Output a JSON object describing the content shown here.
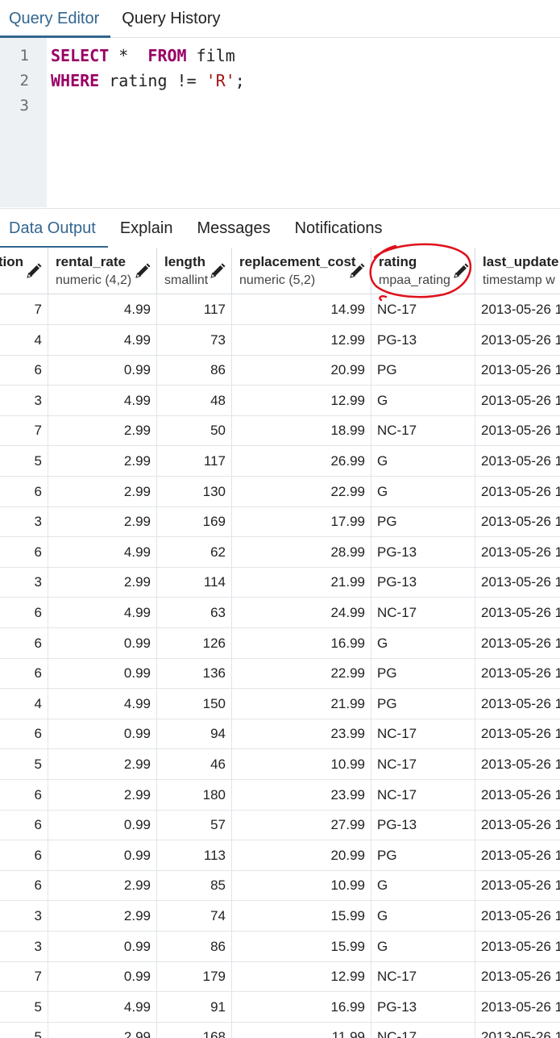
{
  "top_tabs": [
    {
      "label": "Query Editor",
      "active": true
    },
    {
      "label": "Query History",
      "active": false
    }
  ],
  "editor": {
    "line_numbers": [
      "1",
      "2",
      "3"
    ],
    "line1": {
      "kw1": "SELECT",
      "rest1": " *  ",
      "kw2": "FROM",
      "rest2": " film"
    },
    "line2": {
      "kw1": "WHERE",
      "rest1": " rating != ",
      "str": "'R'",
      "rest2": ";"
    }
  },
  "bottom_tabs": [
    {
      "label": "Data Output",
      "active": true
    },
    {
      "label": "Explain",
      "active": false
    },
    {
      "label": "Messages",
      "active": false
    },
    {
      "label": "Notifications",
      "active": false
    }
  ],
  "columns": [
    {
      "name": "ation",
      "type": ""
    },
    {
      "name": "rental_rate",
      "type": "numeric (4,2)"
    },
    {
      "name": "length",
      "type": "smallint"
    },
    {
      "name": "replacement_cost",
      "type": "numeric (5,2)"
    },
    {
      "name": "rating",
      "type": "mpaa_rating"
    },
    {
      "name": "last_update",
      "type": "timestamp w"
    }
  ],
  "rows": [
    [
      "7",
      "4.99",
      "117",
      "14.99",
      "NC-17",
      "2013-05-26 1"
    ],
    [
      "4",
      "4.99",
      "73",
      "12.99",
      "PG-13",
      "2013-05-26 1"
    ],
    [
      "6",
      "0.99",
      "86",
      "20.99",
      "PG",
      "2013-05-26 1"
    ],
    [
      "3",
      "4.99",
      "48",
      "12.99",
      "G",
      "2013-05-26 1"
    ],
    [
      "7",
      "2.99",
      "50",
      "18.99",
      "NC-17",
      "2013-05-26 1"
    ],
    [
      "5",
      "2.99",
      "117",
      "26.99",
      "G",
      "2013-05-26 1"
    ],
    [
      "6",
      "2.99",
      "130",
      "22.99",
      "G",
      "2013-05-26 1"
    ],
    [
      "3",
      "2.99",
      "169",
      "17.99",
      "PG",
      "2013-05-26 1"
    ],
    [
      "6",
      "4.99",
      "62",
      "28.99",
      "PG-13",
      "2013-05-26 1"
    ],
    [
      "3",
      "2.99",
      "114",
      "21.99",
      "PG-13",
      "2013-05-26 1"
    ],
    [
      "6",
      "4.99",
      "63",
      "24.99",
      "NC-17",
      "2013-05-26 1"
    ],
    [
      "6",
      "0.99",
      "126",
      "16.99",
      "G",
      "2013-05-26 1"
    ],
    [
      "6",
      "0.99",
      "136",
      "22.99",
      "PG",
      "2013-05-26 1"
    ],
    [
      "4",
      "4.99",
      "150",
      "21.99",
      "PG",
      "2013-05-26 1"
    ],
    [
      "6",
      "0.99",
      "94",
      "23.99",
      "NC-17",
      "2013-05-26 1"
    ],
    [
      "5",
      "2.99",
      "46",
      "10.99",
      "NC-17",
      "2013-05-26 1"
    ],
    [
      "6",
      "2.99",
      "180",
      "23.99",
      "NC-17",
      "2013-05-26 1"
    ],
    [
      "6",
      "0.99",
      "57",
      "27.99",
      "PG-13",
      "2013-05-26 1"
    ],
    [
      "6",
      "0.99",
      "113",
      "20.99",
      "PG",
      "2013-05-26 1"
    ],
    [
      "6",
      "2.99",
      "85",
      "10.99",
      "G",
      "2013-05-26 1"
    ],
    [
      "3",
      "2.99",
      "74",
      "15.99",
      "G",
      "2013-05-26 1"
    ],
    [
      "3",
      "0.99",
      "86",
      "15.99",
      "G",
      "2013-05-26 1"
    ],
    [
      "7",
      "0.99",
      "179",
      "12.99",
      "NC-17",
      "2013-05-26 1"
    ],
    [
      "5",
      "4.99",
      "91",
      "16.99",
      "PG-13",
      "2013-05-26 1"
    ],
    [
      "5",
      "2.99",
      "168",
      "11.99",
      "NC-17",
      "2013-05-26 1"
    ]
  ],
  "colors": {
    "accent": "#326690",
    "keyword": "#990066",
    "string": "#a31515",
    "annotation": "#e0101a"
  },
  "icons": {
    "column_edit": "pencil-icon"
  }
}
